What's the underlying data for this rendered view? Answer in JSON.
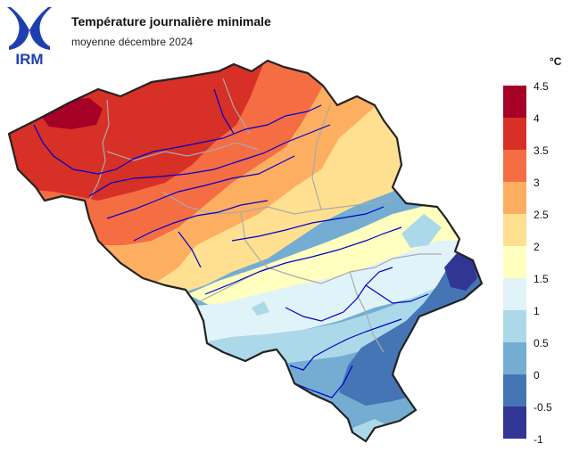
{
  "header": {
    "logo_text": "IRM",
    "title": "Température journalière minimale",
    "subtitle": "moyenne décembre 2024"
  },
  "legend": {
    "unit": "°C",
    "items": [
      {
        "label": "4.5",
        "color": "#a50026"
      },
      {
        "label": "4",
        "color": "#d73027"
      },
      {
        "label": "3.5",
        "color": "#f46d43"
      },
      {
        "label": "3",
        "color": "#fdae61"
      },
      {
        "label": "2.5",
        "color": "#fee090"
      },
      {
        "label": "2",
        "color": "#ffffbf"
      },
      {
        "label": "1.5",
        "color": "#e0f3f8"
      },
      {
        "label": "1",
        "color": "#abd9e9"
      },
      {
        "label": "0.5",
        "color": "#74add1"
      },
      {
        "label": "0",
        "color": "#4575b4"
      },
      {
        "label": "-0.5",
        "color": "#313695"
      },
      {
        "label": "-1",
        "color": ""
      }
    ]
  },
  "map": {
    "border_color": "#222222",
    "river_color": "#0000cc",
    "province_border_color": "#aaaaaa"
  }
}
